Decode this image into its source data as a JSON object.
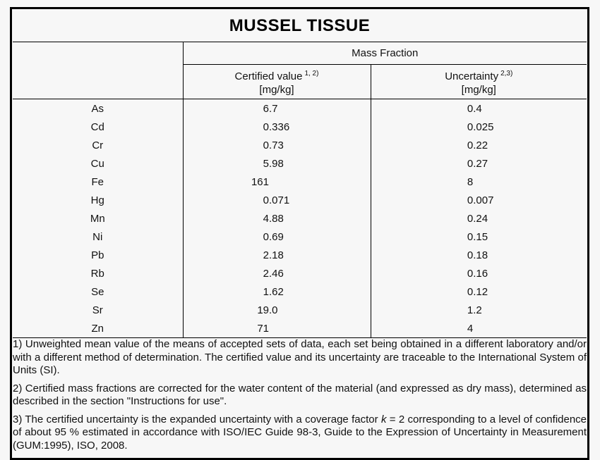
{
  "title": "MUSSEL TISSUE",
  "table": {
    "group_header": "Mass Fraction",
    "columns": [
      {
        "label": "Certified value",
        "sup": "1, 2)",
        "unit": "[mg/kg]"
      },
      {
        "label": "Uncertainty",
        "sup": "2,3)",
        "unit": "[mg/kg]"
      }
    ],
    "rows": [
      {
        "element": "As",
        "certified": "6.7",
        "uncertainty": "0.4"
      },
      {
        "element": "Cd",
        "certified": "0.336",
        "uncertainty": "0.025"
      },
      {
        "element": "Cr",
        "certified": "0.73",
        "uncertainty": "0.22"
      },
      {
        "element": "Cu",
        "certified": "5.98",
        "uncertainty": "0.27"
      },
      {
        "element": "Fe",
        "certified": "161",
        "uncertainty": "8"
      },
      {
        "element": "Hg",
        "certified": "0.071",
        "uncertainty": "0.007"
      },
      {
        "element": "Mn",
        "certified": "4.88",
        "uncertainty": "0.24"
      },
      {
        "element": "Ni",
        "certified": "0.69",
        "uncertainty": "0.15"
      },
      {
        "element": "Pb",
        "certified": "2.18",
        "uncertainty": "0.18"
      },
      {
        "element": "Rb",
        "certified": "2.46",
        "uncertainty": "0.16"
      },
      {
        "element": "Se",
        "certified": "1.62",
        "uncertainty": "0.12"
      },
      {
        "element": "Sr",
        "certified": "19.0",
        "uncertainty": "1.2"
      },
      {
        "element": "Zn",
        "certified": "71",
        "uncertainty": "4"
      }
    ]
  },
  "footnotes": [
    {
      "segments": [
        {
          "text": "1) Unweighted mean value of the means of accepted sets of data, each set being obtained in a different laboratory and/or with a different method of determination. The certified value and its uncertainty are traceable to the International System of Units (SI)."
        }
      ]
    },
    {
      "segments": [
        {
          "text": "2) Certified mass fractions are corrected for the water content of the material (and expressed as dry mass), determined as described in the section \"Instructions for use\"."
        }
      ]
    },
    {
      "segments": [
        {
          "text": "3) The certified uncertainty is the expanded uncertainty with a coverage factor "
        },
        {
          "text": "k",
          "italic": true
        },
        {
          "text": " = 2 corresponding to a level of confidence of about 95 % estimated in accordance with ISO/IEC Guide 98-3, Guide to the Expression of Uncertainty in Measurement (GUM:1995), ISO, 2008."
        }
      ]
    }
  ],
  "colors": {
    "border": "#000000",
    "text": "#111111",
    "background": "#f7f7f7"
  }
}
